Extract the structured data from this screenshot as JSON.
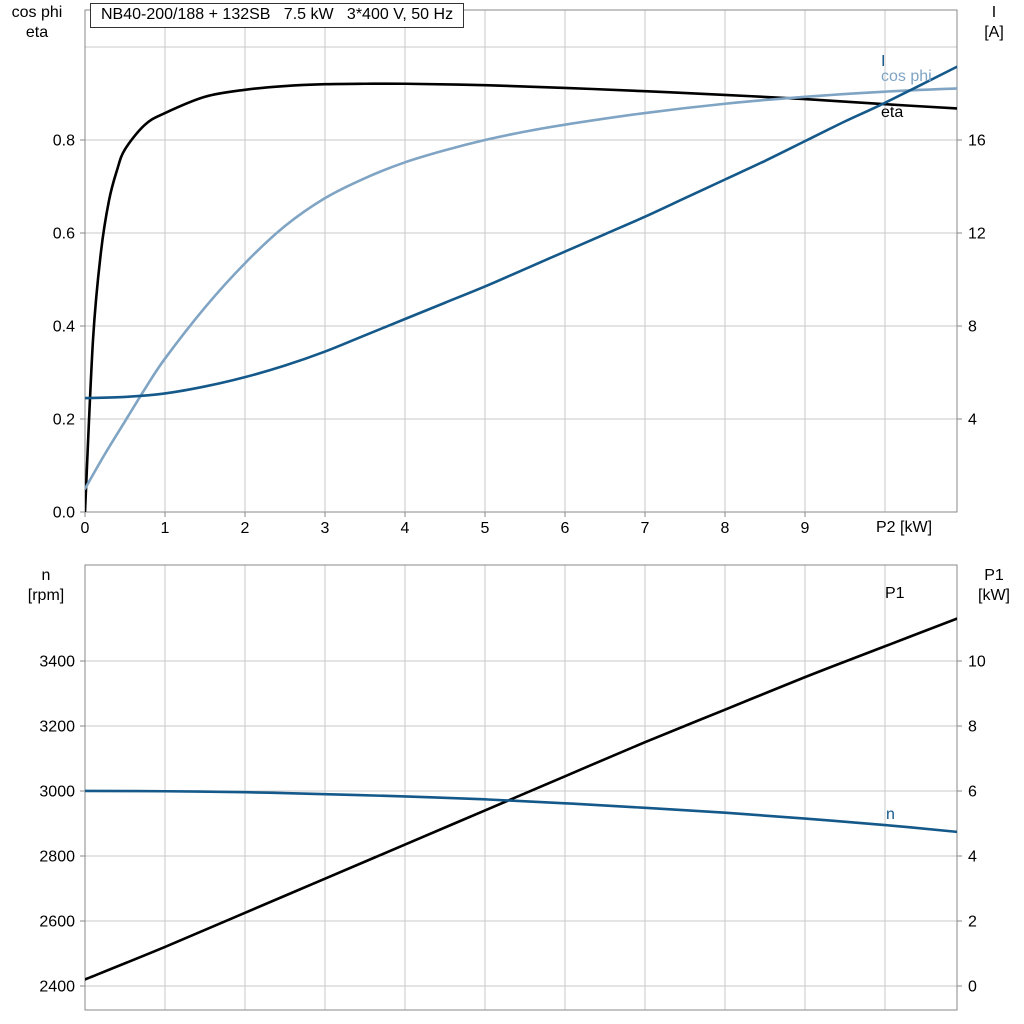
{
  "colors": {
    "black_curve": "#000000",
    "dark_blue_curve": "#14598a",
    "light_blue_curve": "#7fa4c4",
    "grid": "#c8c8c8",
    "plot_border": "#8a8a8a",
    "background": "#ffffff"
  },
  "top_chart": {
    "title_box": "NB40-200/188 + 132SB   7.5 kW   3*400 V, 50 Hz",
    "left_axis_title": [
      "cos phi",
      "eta"
    ],
    "right_axis_title": [
      "I",
      "[A]"
    ],
    "x_axis_title": "P2 [kW]",
    "curve_labels": {
      "I": "I",
      "cos_phi": "cos phi",
      "eta": "eta"
    }
  },
  "bottom_chart": {
    "left_axis_title": [
      "n",
      "[rpm]"
    ],
    "right_axis_title": [
      "P1",
      "[kW]"
    ],
    "curve_labels": {
      "P1": "P1",
      "n": "n"
    }
  },
  "chart_data": [
    {
      "type": "line",
      "title": "NB40-200/188 + 132SB   7.5 kW   3*400 V, 50 Hz",
      "xlabel": "P2 [kW]",
      "ylabel_left": "cos phi / eta",
      "ylabel_right": "I [A]",
      "xlim": [
        0,
        10.9
      ],
      "ylim_left": [
        0,
        1.0796
      ],
      "ylim_right": [
        0,
        21.59
      ],
      "grid": true,
      "xgrid": [
        1,
        2,
        3,
        4,
        5,
        6,
        7,
        8,
        9,
        10
      ],
      "ygrid_left": [
        0.2,
        0.4,
        0.6,
        0.8,
        1.0
      ],
      "xticks": [
        0,
        1,
        2,
        3,
        4,
        5,
        6,
        7,
        8,
        9
      ],
      "xticks_labels": [
        "0",
        "1",
        "2",
        "3",
        "4",
        "5",
        "6",
        "7",
        "8",
        "9"
      ],
      "yticks_left": [
        0,
        0.2,
        0.4,
        0.6,
        0.8
      ],
      "yticks_left_labels": [
        "0.0",
        "0.2",
        "0.4",
        "0.6",
        "0.8"
      ],
      "yticks_right": [
        4,
        8,
        12,
        16
      ],
      "yticks_right_labels": [
        "4",
        "8",
        "12",
        "16"
      ],
      "series": [
        {
          "name": "eta",
          "axis": "left",
          "color_key": "black_curve",
          "x": [
            0,
            0.1,
            0.2,
            0.3,
            0.4,
            0.5,
            0.75,
            1,
            1.5,
            2,
            2.5,
            3,
            3.5,
            4,
            5,
            6,
            7,
            8,
            9,
            10,
            10.9
          ],
          "y": [
            0.0,
            0.37,
            0.56,
            0.67,
            0.735,
            0.78,
            0.833,
            0.858,
            0.893,
            0.908,
            0.916,
            0.92,
            0.921,
            0.921,
            0.918,
            0.912,
            0.905,
            0.897,
            0.888,
            0.877,
            0.868
          ]
        },
        {
          "name": "cos phi",
          "axis": "left",
          "color_key": "light_blue_curve",
          "x": [
            0,
            0.25,
            0.5,
            0.75,
            1,
            1.5,
            2,
            2.5,
            3,
            3.5,
            4,
            4.5,
            5,
            5.5,
            6,
            7,
            8,
            9,
            10,
            10.9
          ],
          "y": [
            0.05,
            0.125,
            0.195,
            0.265,
            0.33,
            0.44,
            0.535,
            0.615,
            0.675,
            0.718,
            0.752,
            0.778,
            0.8,
            0.818,
            0.833,
            0.858,
            0.878,
            0.893,
            0.904,
            0.911
          ]
        },
        {
          "name": "I",
          "axis": "right",
          "color_key": "dark_blue_curve",
          "x": [
            0,
            0.5,
            1,
            1.5,
            2,
            2.5,
            3,
            3.5,
            4,
            4.5,
            5,
            5.5,
            6,
            6.5,
            7,
            7.5,
            8,
            8.5,
            9,
            9.5,
            10,
            10.9
          ],
          "y": [
            4.9,
            4.95,
            5.1,
            5.4,
            5.8,
            6.3,
            6.9,
            7.6,
            8.3,
            9.0,
            9.7,
            10.45,
            11.2,
            11.95,
            12.7,
            13.5,
            14.3,
            15.1,
            15.95,
            16.8,
            17.6,
            19.15
          ]
        }
      ]
    },
    {
      "type": "line",
      "title": "",
      "xlabel": "",
      "ylabel_left": "n [rpm]",
      "ylabel_right": "P1 [kW]",
      "xlim": [
        0,
        10.9
      ],
      "ylim_left": [
        2326,
        3695
      ],
      "ylim_right": [
        -0.74,
        12.95
      ],
      "grid": true,
      "xgrid": [
        1,
        2,
        3,
        4,
        5,
        6,
        7,
        8,
        9,
        10
      ],
      "ygrid_left": [
        2400,
        2600,
        2800,
        3000,
        3200,
        3400
      ],
      "xticks": [],
      "xticks_labels": [],
      "yticks_left": [
        2400,
        2600,
        2800,
        3000,
        3200,
        3400
      ],
      "yticks_left_labels": [
        "2400",
        "2600",
        "2800",
        "3000",
        "3200",
        "3400"
      ],
      "yticks_right": [
        0,
        2,
        4,
        6,
        8,
        10
      ],
      "yticks_right_labels": [
        "0",
        "2",
        "4",
        "6",
        "8",
        "10"
      ],
      "series": [
        {
          "name": "P1",
          "axis": "right",
          "color_key": "black_curve",
          "x": [
            0,
            1,
            2,
            3,
            4,
            5,
            6,
            7,
            8,
            9,
            10,
            10.9
          ],
          "y": [
            0.2,
            1.2,
            2.25,
            3.3,
            4.35,
            5.4,
            6.45,
            7.5,
            8.5,
            9.5,
            10.45,
            11.3
          ]
        },
        {
          "name": "n",
          "axis": "left",
          "color_key": "dark_blue_curve",
          "x": [
            0,
            1,
            2,
            3,
            4,
            5,
            6,
            7,
            8,
            9,
            10,
            10.9
          ],
          "y": [
            3000,
            2999,
            2996,
            2990,
            2983,
            2974,
            2962,
            2948,
            2933,
            2915,
            2895,
            2874
          ]
        }
      ]
    }
  ]
}
